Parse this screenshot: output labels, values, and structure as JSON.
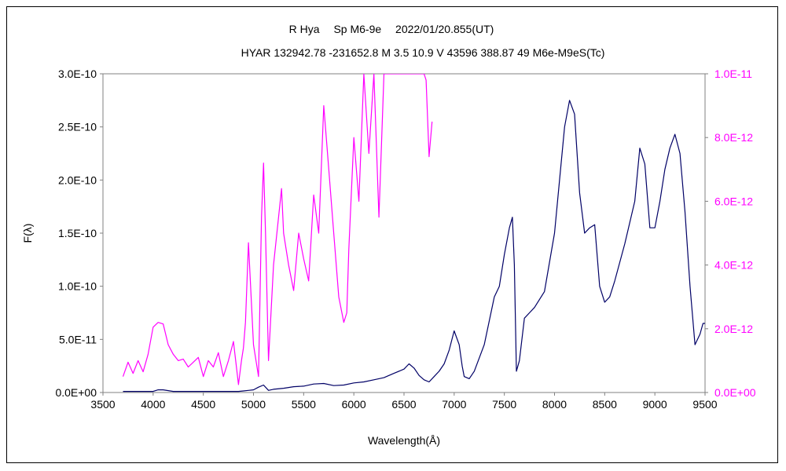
{
  "chart_data": {
    "type": "line",
    "title": "R Hya　 Sp M6-9e　 2022/01/20.855(UT)",
    "subtitle": "HYAR 132942.78 -231652.8 M 3.5 10.9 V 43596 388.87 49 M6e-M9eS(Tc)",
    "xlabel": "Wavelength(Å)",
    "ylabel": "F(λ)",
    "xlim": [
      3500,
      9500
    ],
    "ylim_left": [
      0,
      3e-10
    ],
    "ylim_right": [
      0,
      1e-11
    ],
    "grid": false,
    "legend": "none",
    "x_ticks": [
      "3500",
      "4000",
      "4500",
      "5000",
      "5500",
      "6000",
      "6500",
      "7000",
      "7500",
      "8000",
      "8500",
      "9000",
      "9500"
    ],
    "y_ticks_left": [
      "0.0E+00",
      "5.0E-11",
      "1.0E-10",
      "1.5E-10",
      "2.0E-10",
      "2.5E-10",
      "3.0E-10"
    ],
    "y_ticks_right": [
      "0.0E+00",
      "2.0E-12",
      "4.0E-12",
      "6.0E-12",
      "8.0E-12",
      "1.0E-11"
    ],
    "colors": {
      "left_axis_series": "#000066",
      "right_axis_series": "#ff00ff",
      "right_axis_text": "#ff00ff"
    },
    "series": [
      {
        "axis": "left",
        "x": [
          3700,
          3800,
          3900,
          4000,
          4050,
          4100,
          4200,
          4300,
          4400,
          4500,
          4600,
          4700,
          4800,
          4850,
          4900,
          4950,
          5000,
          5050,
          5100,
          5150,
          5200,
          5300,
          5400,
          5500,
          5600,
          5700,
          5800,
          5900,
          6000,
          6100,
          6200,
          6300,
          6350,
          6400,
          6500,
          6550,
          6600,
          6650,
          6700,
          6750,
          6800,
          6850,
          6900,
          6950,
          7000,
          7050,
          7080,
          7100,
          7150,
          7200,
          7300,
          7400,
          7450,
          7500,
          7550,
          7580,
          7600,
          7620,
          7650,
          7700,
          7750,
          7800,
          7900,
          8000,
          8050,
          8100,
          8150,
          8200,
          8250,
          8300,
          8350,
          8400,
          8450,
          8500,
          8550,
          8600,
          8700,
          8800,
          8850,
          8900,
          8950,
          9000,
          9050,
          9100,
          9150,
          9200,
          9250,
          9300,
          9350,
          9400,
          9450,
          9480,
          9500
        ],
        "y": [
          1e-12,
          1e-12,
          1e-12,
          1e-12,
          2.5e-12,
          2.5e-12,
          1e-12,
          1e-12,
          1e-12,
          1e-12,
          1e-12,
          1e-12,
          1e-12,
          1e-12,
          1.5e-12,
          2e-12,
          2.5e-12,
          5e-12,
          7e-12,
          2e-12,
          3e-12,
          4e-12,
          5.5e-12,
          6e-12,
          8e-12,
          8.5e-12,
          6.5e-12,
          7e-12,
          9e-12,
          1e-11,
          1.2e-11,
          1.4e-11,
          1.6e-11,
          1.8e-11,
          2.2e-11,
          2.7e-11,
          2.3e-11,
          1.6e-11,
          1.2e-11,
          1e-11,
          1.5e-11,
          2e-11,
          2.7e-11,
          4e-11,
          5.8e-11,
          4.5e-11,
          2.5e-11,
          1.5e-11,
          1.3e-11,
          2e-11,
          4.5e-11,
          9e-11,
          1e-10,
          1.3e-10,
          1.55e-10,
          1.65e-10,
          1.2e-10,
          2e-11,
          3e-11,
          7e-11,
          7.5e-11,
          8e-11,
          9.5e-11,
          1.5e-10,
          2e-10,
          2.5e-10,
          2.75e-10,
          2.62e-10,
          1.88e-10,
          1.5e-10,
          1.55e-10,
          1.58e-10,
          1e-10,
          8.5e-11,
          9e-11,
          1.05e-10,
          1.4e-10,
          1.8e-10,
          2.3e-10,
          2.15e-10,
          1.55e-10,
          1.55e-10,
          1.8e-10,
          2.1e-10,
          2.3e-10,
          2.43e-10,
          2.25e-10,
          1.7e-10,
          1e-10,
          4.5e-11,
          5.5e-11,
          6.5e-11,
          6.5e-11
        ]
      },
      {
        "axis": "right",
        "x": [
          3700,
          3750,
          3800,
          3850,
          3900,
          3950,
          4000,
          4050,
          4100,
          4150,
          4200,
          4250,
          4300,
          4350,
          4400,
          4450,
          4500,
          4550,
          4600,
          4650,
          4700,
          4750,
          4800,
          4850,
          4880,
          4900,
          4920,
          4950,
          4970,
          5000,
          5050,
          5080,
          5100,
          5120,
          5150,
          5200,
          5250,
          5280,
          5300,
          5350,
          5400,
          5450,
          5500,
          5550,
          5600,
          5650,
          5700,
          5750,
          5800,
          5850,
          5900,
          5930,
          5950,
          6000,
          6050,
          6100,
          6150,
          6200,
          6250,
          6300,
          6350,
          6400,
          6420,
          6450,
          6500,
          6550,
          6600,
          6650,
          6700,
          6720,
          6750,
          6780
        ],
        "y": [
          5e-13,
          9.5e-13,
          6e-13,
          1e-12,
          6.5e-13,
          1.2e-12,
          2.05e-12,
          2.2e-12,
          2.15e-12,
          1.5e-12,
          1.2e-12,
          1e-12,
          1.05e-12,
          8e-13,
          9.5e-13,
          1.1e-12,
          5e-13,
          1e-12,
          8e-13,
          1.25e-12,
          5e-13,
          1e-12,
          1.6e-12,
          2.5e-13,
          1e-12,
          1.4e-12,
          2.2e-12,
          4.7e-12,
          3.4e-12,
          1.5e-12,
          5e-13,
          5.5e-12,
          7.2e-12,
          5e-12,
          1e-12,
          4e-12,
          5.5e-12,
          6.4e-12,
          5e-12,
          4e-12,
          3.2e-12,
          5e-12,
          4.2e-12,
          3.5e-12,
          6.2e-12,
          5e-12,
          9e-12,
          7e-12,
          5e-12,
          3e-12,
          2.2e-12,
          2.5e-12,
          4.5e-12,
          8e-12,
          6e-12,
          1e-11,
          7.5e-12,
          1e-11,
          5.5e-12,
          1e-11,
          1e-11,
          1e-11,
          1e-11,
          1e-11,
          1e-11,
          1e-11,
          1e-11,
          1e-11,
          1e-11,
          9.8e-12,
          7.4e-12,
          8.5e-12
        ]
      }
    ]
  }
}
